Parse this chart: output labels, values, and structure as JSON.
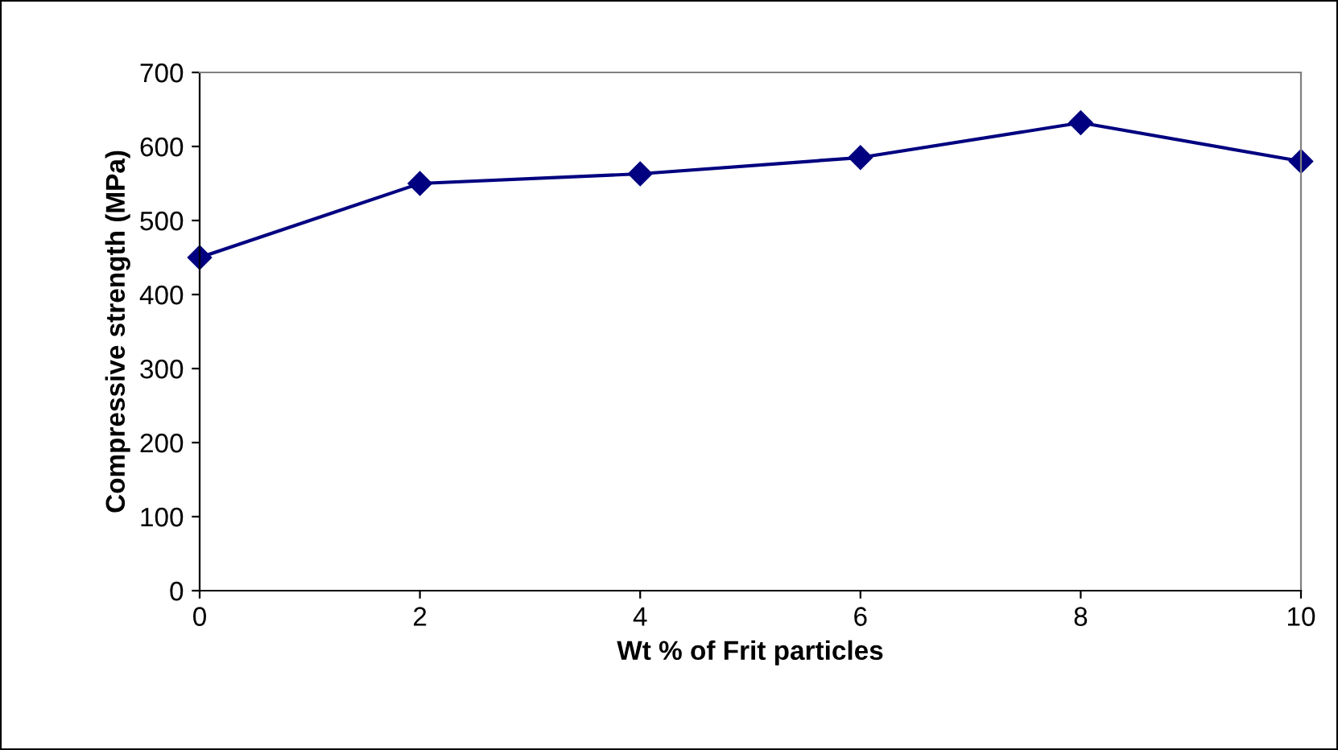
{
  "chart_data": {
    "type": "line",
    "xlabel": "Wt % of Frit particles",
    "ylabel": "Compressive strength (MPa)",
    "x": [
      0,
      2,
      4,
      6,
      8,
      10
    ],
    "series": [
      {
        "color": "#000080",
        "values": [
          450,
          550,
          563,
          585,
          632,
          580
        ]
      }
    ],
    "xlim": [
      0,
      10
    ],
    "xticks": [
      0,
      2,
      4,
      6,
      8,
      10
    ],
    "ylim": [
      0,
      700
    ],
    "yticks": [
      0,
      100,
      200,
      300,
      400,
      500,
      600,
      700
    ],
    "grid": false,
    "legend": false,
    "marker": "diamond",
    "line_style": "solid"
  }
}
